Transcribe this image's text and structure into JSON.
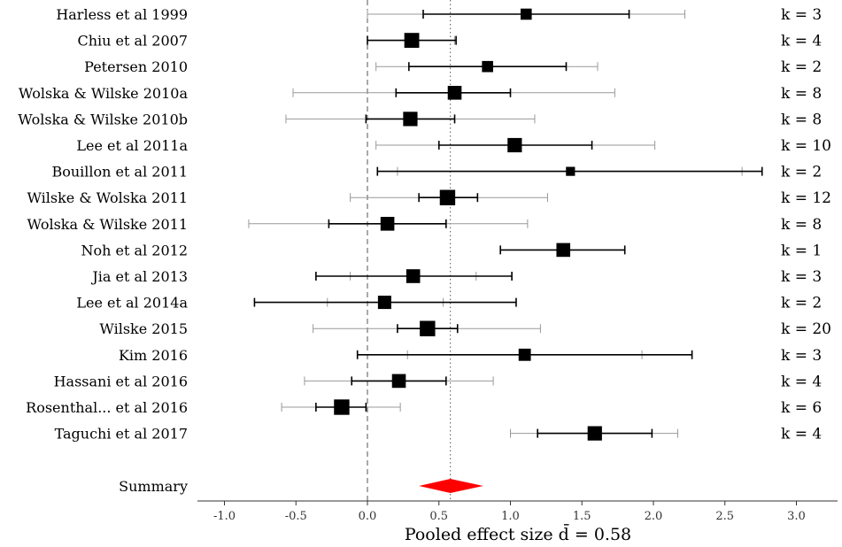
{
  "chart_data": {
    "type": "forest",
    "xlabel": "Pooled effect size d̄ = 0.58",
    "xlim": [
      -1.2,
      3.3
    ],
    "xticks": [
      "-1.0",
      "-0.5",
      "0.0",
      "0.5",
      "1.0",
      "1.5",
      "2.0",
      "2.5",
      "3.0"
    ],
    "xtick_values": [
      -1.0,
      -0.5,
      0.0,
      0.5,
      1.0,
      1.5,
      2.0,
      2.5,
      3.0
    ],
    "reference_line": 0.0,
    "pooled_line": 0.58,
    "studies": [
      {
        "label": "Harless et al 1999",
        "k": "k = 3",
        "d": 1.11,
        "ci": [
          0.39,
          1.83
        ],
        "pi": [
          0.0,
          2.22
        ],
        "weight": 0.55
      },
      {
        "label": "Chiu et al 2007",
        "k": "k = 4",
        "d": 0.31,
        "ci": [
          0.0,
          0.62
        ],
        "pi": [
          0.0,
          0.61
        ],
        "weight": 0.9
      },
      {
        "label": "Petersen 2010",
        "k": "k = 2",
        "d": 0.84,
        "ci": [
          0.29,
          1.39
        ],
        "pi": [
          0.06,
          1.61
        ],
        "weight": 0.55
      },
      {
        "label": "Wolska & Wilske 2010a",
        "k": "k = 8",
        "d": 0.61,
        "ci": [
          0.2,
          1.0
        ],
        "pi": [
          -0.52,
          1.73
        ],
        "weight": 0.8
      },
      {
        "label": "Wolska & Wilske 2010b",
        "k": "k = 8",
        "d": 0.3,
        "ci": [
          -0.01,
          0.61
        ],
        "pi": [
          -0.57,
          1.17
        ],
        "weight": 0.85
      },
      {
        "label": "Lee et al 2011a",
        "k": "k = 10",
        "d": 1.03,
        "ci": [
          0.5,
          1.57
        ],
        "pi": [
          0.06,
          2.01
        ],
        "weight": 0.85
      },
      {
        "label": "Bouillon et al 2011",
        "k": "k = 2",
        "d": 1.42,
        "ci": [
          0.07,
          2.76
        ],
        "pi": [
          0.21,
          2.62
        ],
        "weight": 0.35
      },
      {
        "label": "Wilske & Wolska 2011",
        "k": "k = 12",
        "d": 0.56,
        "ci": [
          0.36,
          0.77
        ],
        "pi": [
          -0.12,
          1.26
        ],
        "weight": 0.95
      },
      {
        "label": "Wolska & Wilske 2011",
        "k": "k = 8",
        "d": 0.14,
        "ci": [
          -0.27,
          0.55
        ],
        "pi": [
          -0.83,
          1.12
        ],
        "weight": 0.8
      },
      {
        "label": "Noh et al 2012",
        "k": "k = 1",
        "d": 1.37,
        "ci": [
          0.93,
          1.8
        ],
        "pi": null,
        "weight": 0.8
      },
      {
        "label": "Jia et al 2013",
        "k": "k = 3",
        "d": 0.32,
        "ci": [
          -0.36,
          1.01
        ],
        "pi": [
          -0.12,
          0.76
        ],
        "weight": 0.8
      },
      {
        "label": "Lee et al 2014a",
        "k": "k = 2",
        "d": 0.12,
        "ci": [
          -0.79,
          1.04
        ],
        "pi": [
          -0.28,
          0.53
        ],
        "weight": 0.75
      },
      {
        "label": "Wilske 2015",
        "k": "k = 20",
        "d": 0.42,
        "ci": [
          0.21,
          0.63
        ],
        "pi": [
          -0.38,
          1.21
        ],
        "weight": 0.95
      },
      {
        "label": "Kim 2016",
        "k": "k = 3",
        "d": 1.1,
        "ci": [
          -0.07,
          2.27
        ],
        "pi": [
          0.28,
          1.92
        ],
        "weight": 0.65
      },
      {
        "label": "Hassani et al 2016",
        "k": "k = 4",
        "d": 0.22,
        "ci": [
          -0.11,
          0.55
        ],
        "pi": [
          -0.44,
          0.88
        ],
        "weight": 0.8
      },
      {
        "label": "Rosenthal... et al 2016",
        "k": "k = 6",
        "d": -0.18,
        "ci": [
          -0.36,
          -0.01
        ],
        "pi": [
          -0.6,
          0.23
        ],
        "weight": 0.95
      },
      {
        "label": "Taguchi et al 2017",
        "k": "k = 4",
        "d": 1.59,
        "ci": [
          1.19,
          1.99
        ],
        "pi": [
          1.0,
          2.17
        ],
        "weight": 0.85
      }
    ],
    "summary": {
      "label": "Summary",
      "d": 0.58,
      "ci": [
        0.36,
        0.81
      ],
      "color": "#ff0000"
    },
    "colors": {
      "ci": "#000000",
      "pi": "#999999",
      "box": "#000000",
      "summary": "#ff0000",
      "axis": "#333333"
    }
  }
}
